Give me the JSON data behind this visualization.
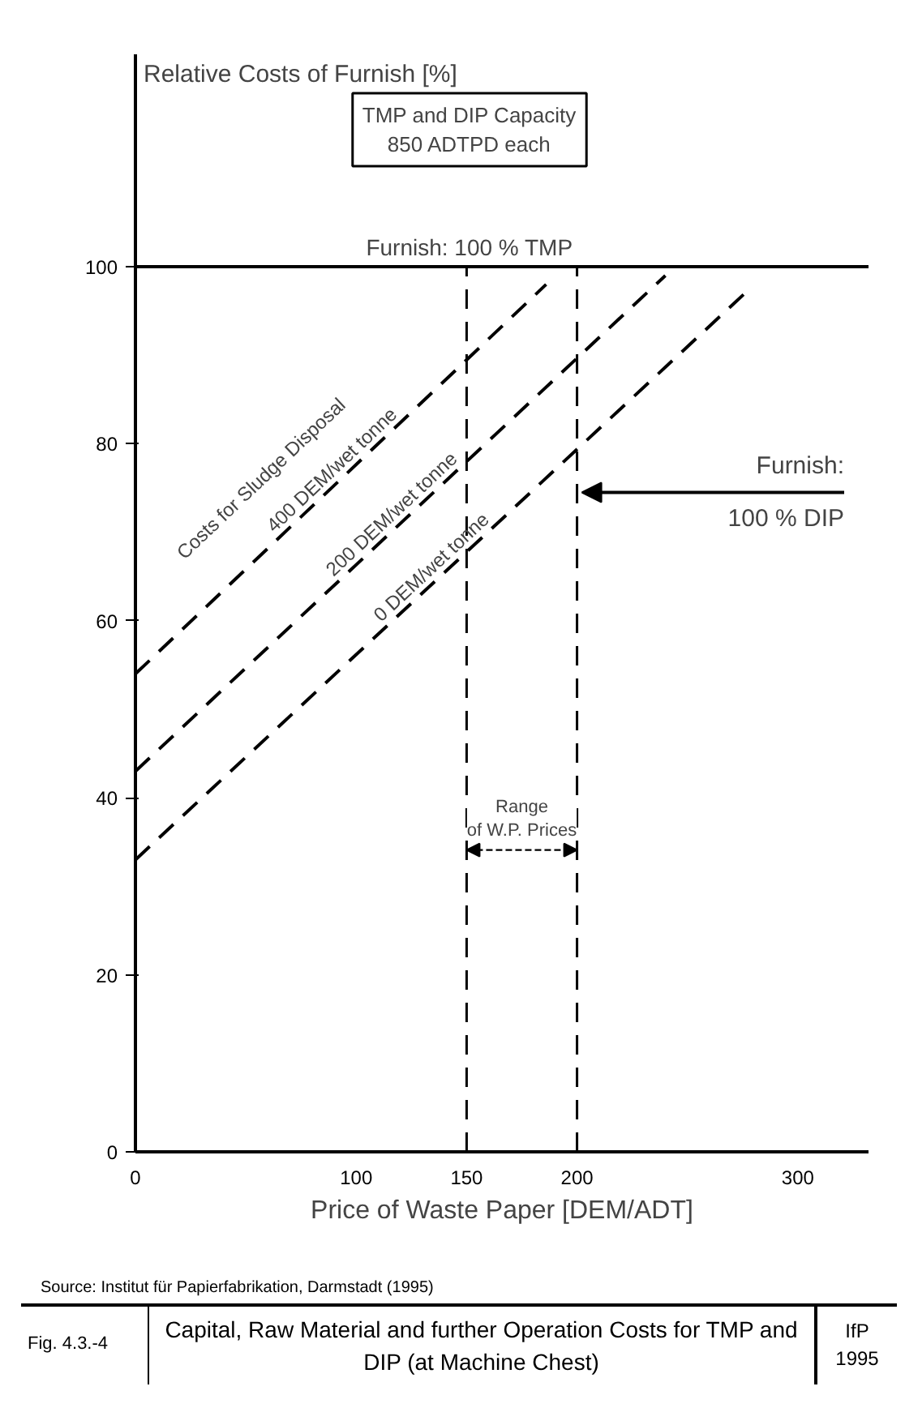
{
  "chart_data": {
    "type": "line",
    "title": "Capital, Raw Material and further Operation Costs for TMP and DIP (at Machine Chest)",
    "xlabel": "Price of Waste Paper [DEM/ADT]",
    "ylabel": "Relative Costs of Furnish [%]",
    "legend_title": "Costs for Sludge Disposal",
    "series": [
      {
        "name": "400 DEM/wet tonne",
        "color": "#000000",
        "x": [
          0,
          186
        ],
        "values": [
          54,
          98
        ]
      },
      {
        "name": "200 DEM/wet tonne",
        "color": "#000000",
        "x": [
          0,
          240
        ],
        "values": [
          43,
          99
        ]
      },
      {
        "name": "0 DEM/wet tonne",
        "color": "#000000",
        "x": [
          0,
          276
        ],
        "values": [
          33,
          97
        ]
      }
    ],
    "line_style": "dashed",
    "marker": "none",
    "grid": false,
    "xlim": [
      0,
      332
    ],
    "ylim": [
      0,
      124
    ],
    "xticks": [
      0,
      100,
      150,
      200,
      300
    ],
    "yticks": [
      0,
      20,
      40,
      60,
      80,
      100
    ],
    "ref_lines": [
      {
        "axis": "y",
        "value": 100,
        "label": "Furnish: 100 % TMP",
        "color": "#000000",
        "line_style": "solid"
      },
      {
        "axis": "x",
        "value": 150,
        "color": "#000000",
        "line_style": "dashed"
      },
      {
        "axis": "x",
        "value": 200,
        "color": "#000000",
        "line_style": "dashed"
      }
    ],
    "annotations": [
      "TMP and DIP Capacity\n850 ADTPD each",
      {
        "text": "Furnish:\n100 % DIP",
        "x": 200,
        "y": 74.5
      },
      "Range\nof W.P. Prices",
      "Source: Institut für Papierfabrikation, Darmstadt (1995)",
      "Fig. 4.3.-4",
      "IfP\n1995"
    ]
  }
}
